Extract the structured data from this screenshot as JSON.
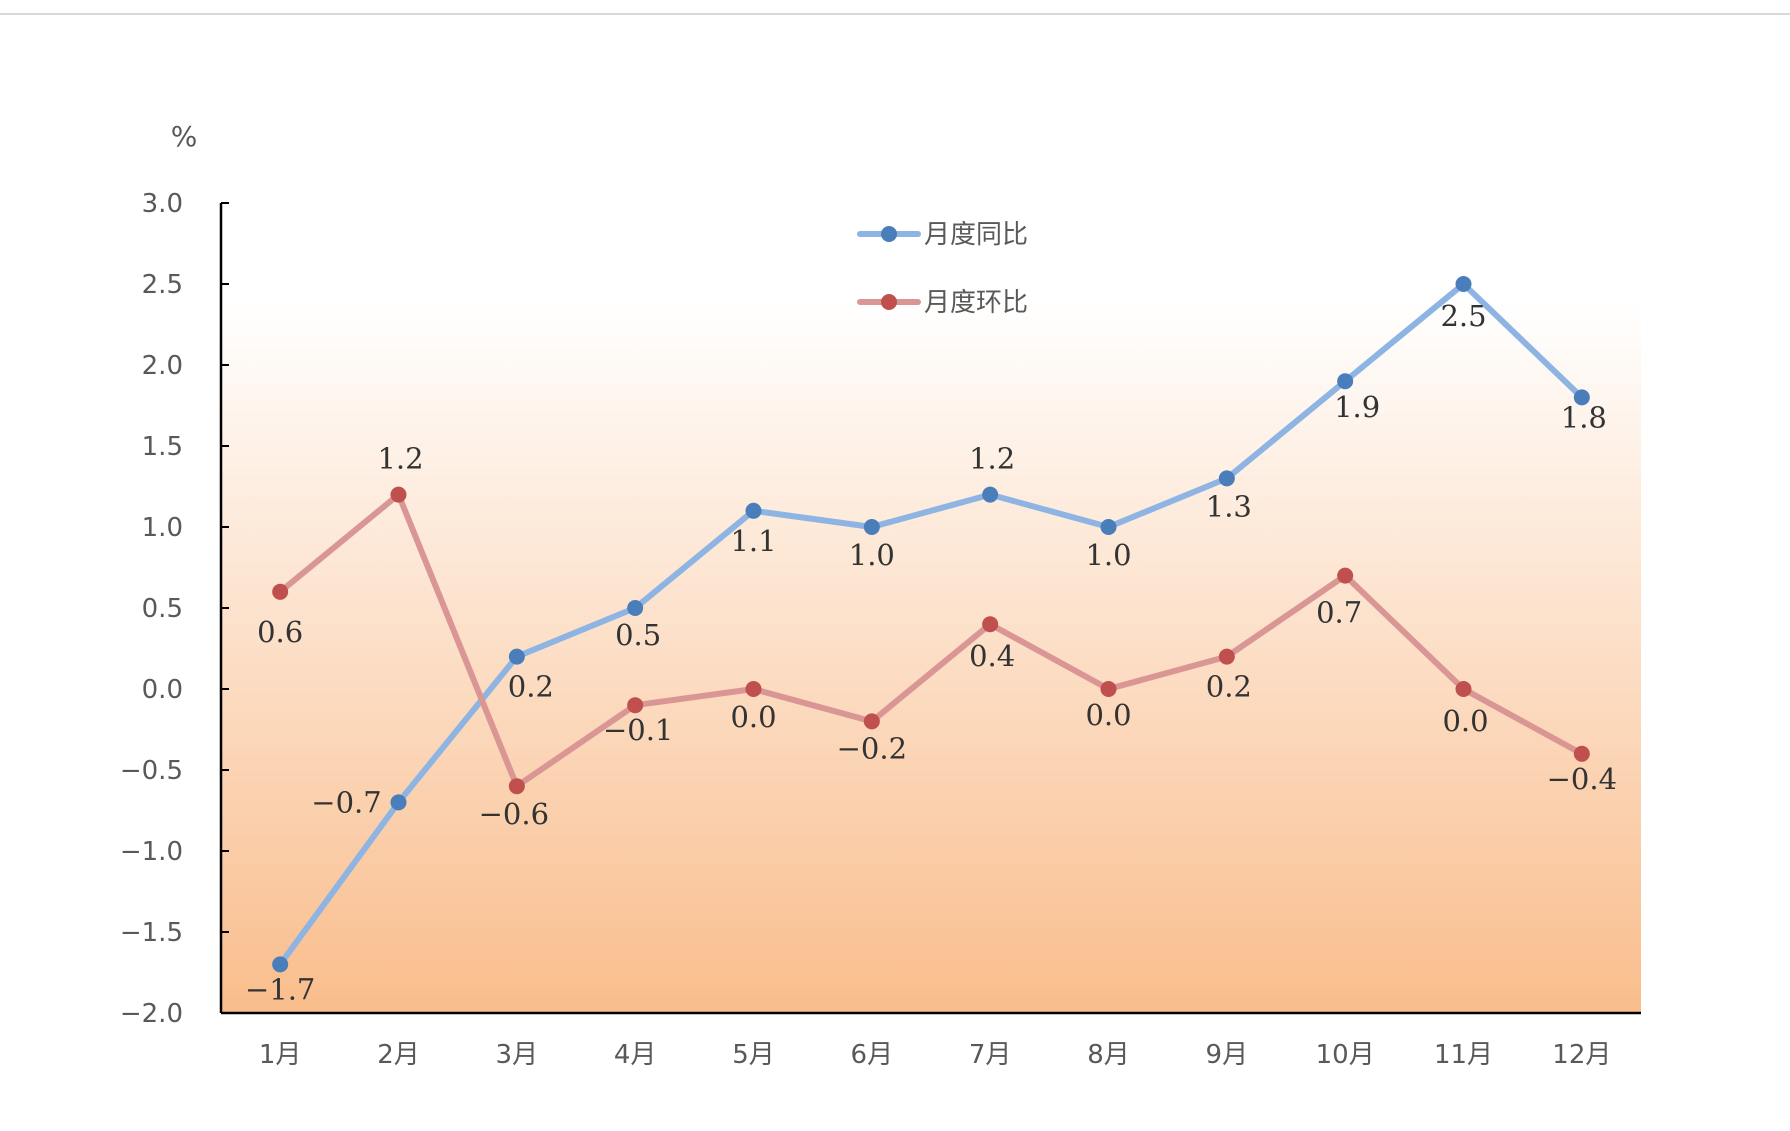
{
  "chart_data": {
    "type": "line",
    "unit": "%",
    "categories": [
      "1月",
      "2月",
      "3月",
      "4月",
      "5月",
      "6月",
      "7月",
      "8月",
      "9月",
      "10月",
      "11月",
      "12月"
    ],
    "ylim": [
      -2.0,
      3.0
    ],
    "yticks": [
      "3.0",
      "2.5",
      "2.0",
      "1.5",
      "1.0",
      "0.5",
      "0.0",
      "−0.5",
      "−1.0",
      "−1.5",
      "−2.0"
    ],
    "grid": false,
    "legend": "top-center",
    "series": [
      {
        "name": "月度同比",
        "color": "#8eb4e3",
        "marker_color": "#4a7ebb",
        "values": [
          -1.7,
          -0.7,
          0.2,
          0.5,
          1.1,
          1.0,
          1.2,
          1.0,
          1.3,
          1.9,
          2.5,
          1.8
        ],
        "labels": [
          "−1.7",
          "−0.7",
          "0.2",
          "0.5",
          "1.1",
          "1.0",
          "1.2",
          "1.0",
          "1.3",
          "1.9",
          "2.5",
          "1.8"
        ]
      },
      {
        "name": "月度环比",
        "color": "#d99694",
        "marker_color": "#c0504d",
        "values": [
          0.6,
          1.2,
          -0.6,
          -0.1,
          0.0,
          -0.2,
          0.4,
          0.0,
          0.2,
          0.7,
          0.0,
          -0.4
        ],
        "labels": [
          "0.6",
          "1.2",
          "−0.6",
          "−0.1",
          "0.0",
          "−0.2",
          "0.4",
          "0.0",
          "0.2",
          "0.7",
          "0.0",
          "−0.4"
        ]
      }
    ],
    "background_gradient": [
      "#ffffff",
      "#f9bd8c"
    ]
  }
}
